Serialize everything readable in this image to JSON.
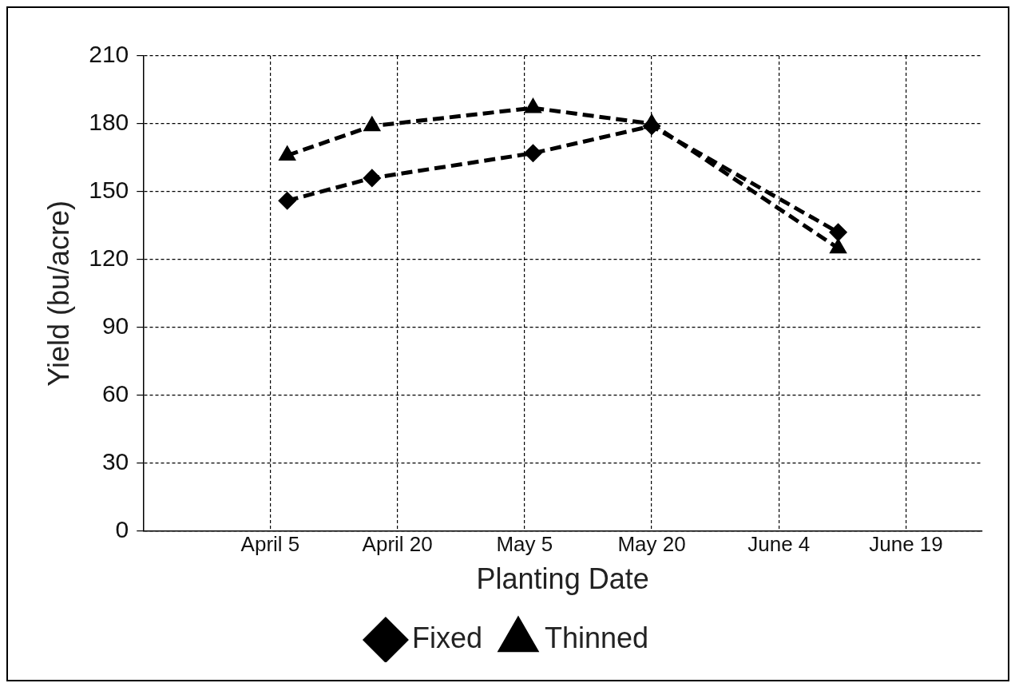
{
  "chart_data": {
    "type": "line",
    "xlabel": "Planting Date",
    "ylabel": "Yield (bu/acre)",
    "xlim": [
      "--03-21",
      "--06-28"
    ],
    "xticks": [
      {
        "value": "--04-05",
        "label": "April 5"
      },
      {
        "value": "--04-20",
        "label": "April 20"
      },
      {
        "value": "--05-05",
        "label": "May 5"
      },
      {
        "value": "--05-20",
        "label": "May 20"
      },
      {
        "value": "--06-04",
        "label": "June 4"
      },
      {
        "value": "--06-19",
        "label": "June 19"
      }
    ],
    "ylim": [
      0,
      210
    ],
    "yticks": [
      0,
      30,
      60,
      90,
      120,
      150,
      180,
      210
    ],
    "x": [
      "--04-07",
      "--04-17",
      "--05-06",
      "--05-20",
      "--06-11"
    ],
    "series": [
      {
        "name": "Fixed",
        "color": "#000000",
        "values": [
          146,
          156,
          167,
          179,
          132
        ],
        "marker": "diamond",
        "line_style": "dashed"
      },
      {
        "name": "Thinned",
        "color": "#000000",
        "values": [
          166,
          179,
          187,
          180,
          125
        ],
        "marker": "triangle",
        "line_style": "dashed"
      }
    ],
    "grid": true,
    "legend": "bottom"
  }
}
